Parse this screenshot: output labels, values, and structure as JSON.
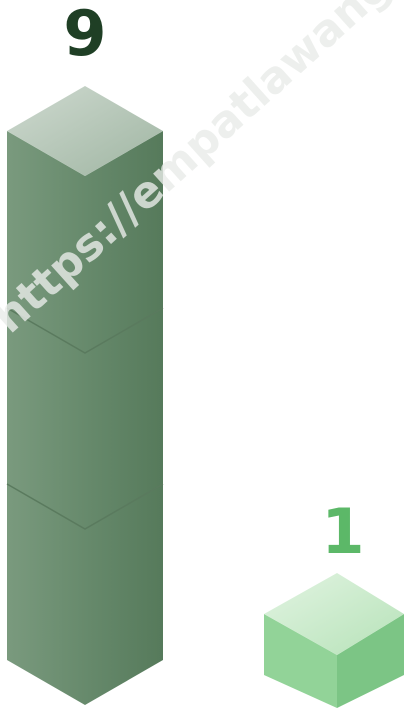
{
  "items": [
    {
      "value": 9
    },
    {
      "value": 1
    }
  ],
  "watermark": "https://empatlawangk"
}
